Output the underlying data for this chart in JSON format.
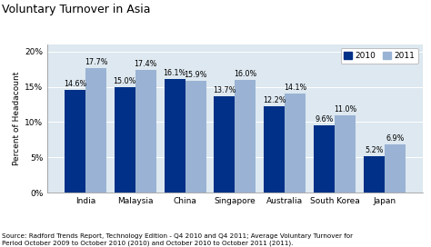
{
  "title": "Voluntary Turnover in Asia",
  "categories": [
    "India",
    "Malaysia",
    "China",
    "Singapore",
    "Australia",
    "South Korea",
    "Japan"
  ],
  "values_2010": [
    14.6,
    15.0,
    16.1,
    13.7,
    12.2,
    9.6,
    5.2
  ],
  "values_2011": [
    17.7,
    17.4,
    15.9,
    16.0,
    14.1,
    11.0,
    6.9
  ],
  "color_2010": "#003087",
  "color_2011": "#9ab3d4",
  "ylabel": "Percent of Headacount",
  "ylim": [
    0,
    21
  ],
  "yticks": [
    0,
    5,
    10,
    15,
    20
  ],
  "yticklabels": [
    "0%",
    "5%",
    "10%",
    "15%",
    "20%"
  ],
  "legend_labels": [
    "2010",
    "2011"
  ],
  "source_text": "Source: Radford Trends Report, Technology Edition - Q4 2010 and Q4 2011; Average Voluntary Turnover for\nPeriod October 2009 to October 2010 (2010) and October 2010 to October 2011 (2011).",
  "background_color": "#dde8f0",
  "title_fontsize": 9,
  "label_fontsize": 6.5,
  "bar_label_fontsize": 5.8,
  "axis_fontsize": 6.5,
  "source_fontsize": 5.2
}
